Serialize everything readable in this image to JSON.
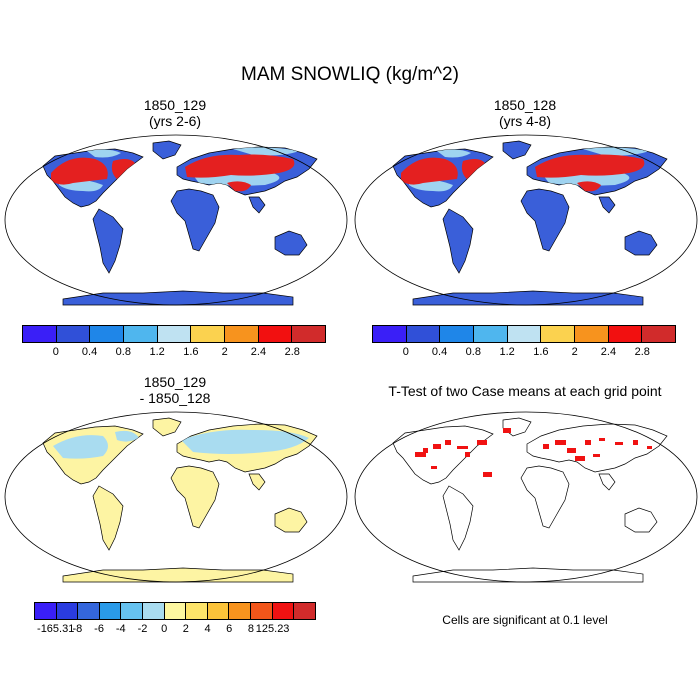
{
  "figure": {
    "title": "MAM SNOWLIQ (kg/m^2)"
  },
  "panels": [
    {
      "title_line1": "1850_129",
      "title_line2": "(yrs 2-6)"
    },
    {
      "title_line1": "1850_128",
      "title_line2": "(yrs 4-8)"
    },
    {
      "title_line1": "1850_129",
      "title_line2": "- 1850_128"
    },
    {
      "title_line1": "T-Test of two Case means at each grid point",
      "title_line2": ""
    }
  ],
  "colorbar_abs": {
    "colors": [
      "#3a1ff7",
      "#3050d8",
      "#1f86e8",
      "#4fb6ee",
      "#bfe2f2",
      "#fbd24f",
      "#f7931e",
      "#f21010",
      "#d12b2b"
    ],
    "labels": [
      "0",
      "0.4",
      "0.8",
      "1.2",
      "1.6",
      "2",
      "2.4",
      "2.8"
    ]
  },
  "colorbar_diff": {
    "colors": [
      "#3a1ff7",
      "#2a3ce0",
      "#3466dc",
      "#2a9ae8",
      "#66c2f0",
      "#a9dcf0",
      "#fdf7a0",
      "#fde46a",
      "#fbc33a",
      "#f7931e",
      "#f2561a",
      "#f01212",
      "#d12b2b"
    ],
    "labels": [
      "-165.31",
      "-8",
      "-6",
      "-4",
      "-2",
      "0",
      "2",
      "4",
      "6",
      "8",
      "125.23"
    ]
  },
  "significance_note": "Cells are significant at 0.1 level",
  "colors": {
    "ocean": "#ffffff",
    "land_low": "#3a5fd9",
    "snow_high": "#e42020",
    "diff_land": "#fdf4a3",
    "significant": "#f01212"
  }
}
